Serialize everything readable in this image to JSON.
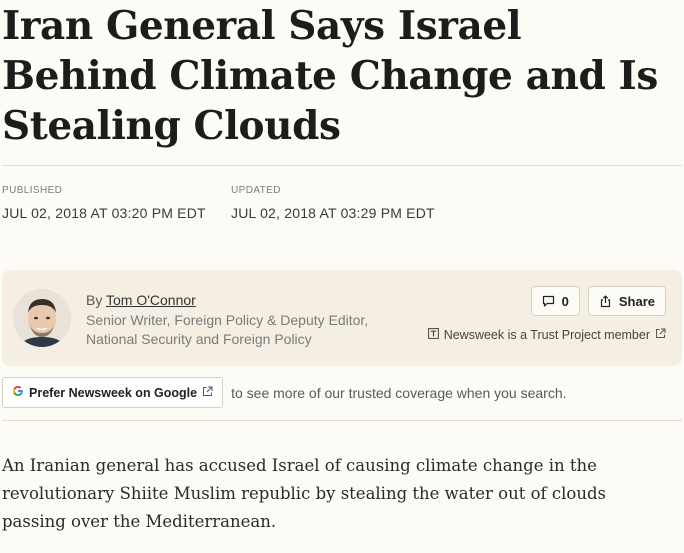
{
  "article": {
    "headline": "Iran General Says Israel Behind Climate Change and Is Stealing Clouds",
    "published_label": "PUBLISHED",
    "published_value": "JUL 02, 2018 AT 03:20 PM EDT",
    "updated_label": "UPDATED",
    "updated_value": "JUL 02, 2018 AT 03:29 PM EDT",
    "lede": "An Iranian general has accused Israel of causing climate change in the revolutionary Shiite Muslim republic by stealing the water out of clouds passing over the Mediterranean."
  },
  "byline": {
    "by_prefix": "By",
    "author_name": "Tom O'Connor",
    "author_title": "Senior Writer, Foreign Policy & Deputy Editor, National Security and Foreign Policy",
    "comments_count": "0",
    "share_label": "Share",
    "trust_label": "Newsweek is a Trust Project member"
  },
  "prefer": {
    "button_label": "Prefer Newsweek on Google",
    "text": "to see more of our trusted coverage when you search."
  },
  "colors": {
    "page_background": "#fdfbf6",
    "card_background": "#f5efe3",
    "border": "#d7d0c2"
  },
  "icons": [
    "comment-icon",
    "share-icon",
    "trust-project-icon",
    "external-link-icon",
    "google-icon"
  ]
}
